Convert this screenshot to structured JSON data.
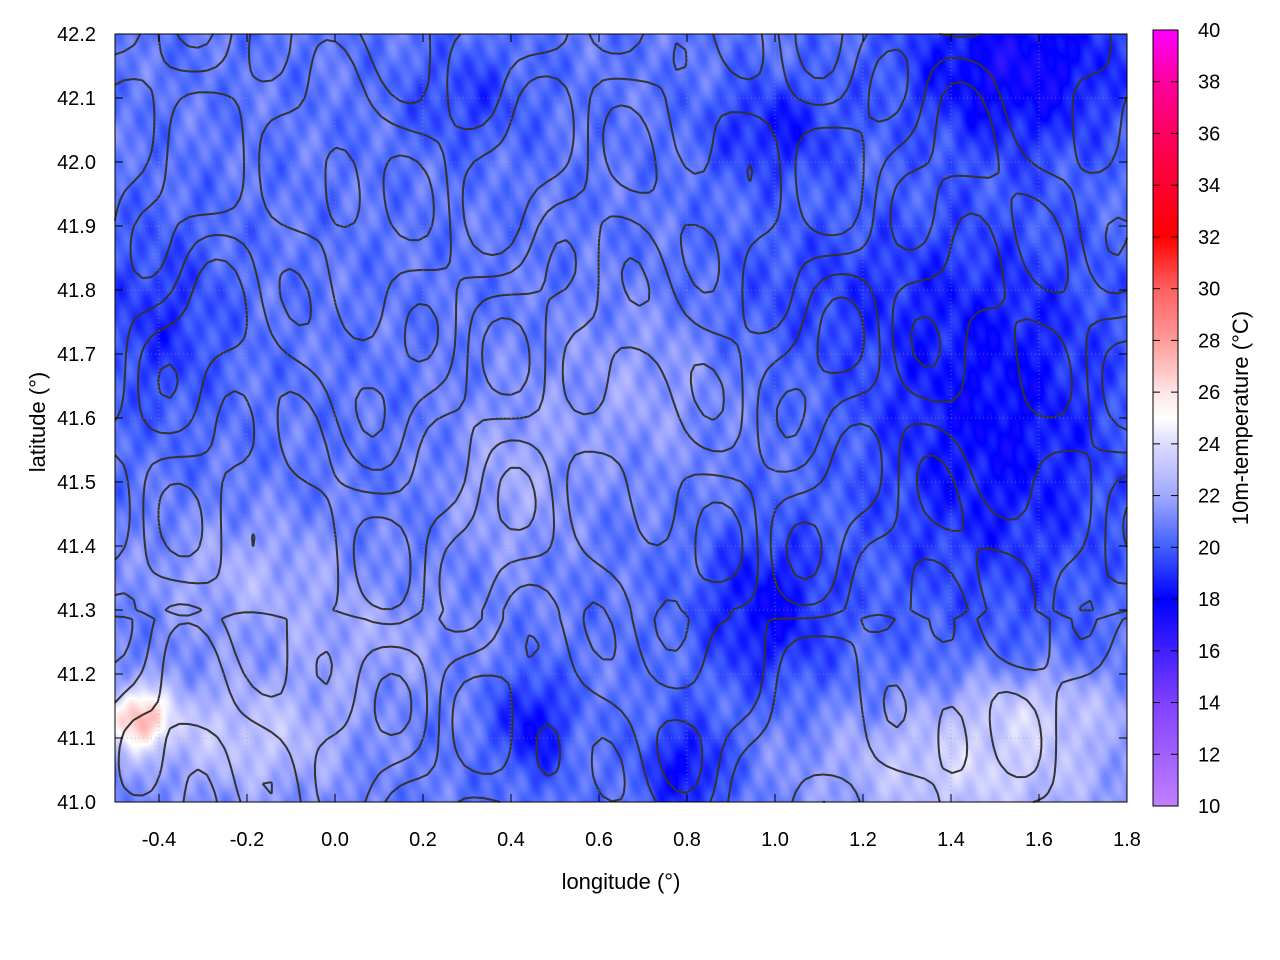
{
  "chart_data": {
    "type": "heatmap",
    "xlabel": "longitude (°)",
    "ylabel": "latitude (°)",
    "colorbar_label": "10m-temperature (°C)",
    "xlim": [
      -0.5,
      1.8
    ],
    "ylim": [
      41.0,
      42.2
    ],
    "cbrange": [
      10,
      40
    ],
    "xticks": [
      "-0.4",
      "-0.2",
      "0.0",
      "0.2",
      "0.4",
      "0.6",
      "0.8",
      "1.0",
      "1.2",
      "1.4",
      "1.6",
      "1.8"
    ],
    "yticks": [
      "41.0",
      "41.1",
      "41.2",
      "41.3",
      "41.4",
      "41.5",
      "41.6",
      "41.7",
      "41.8",
      "41.9",
      "42.0",
      "42.1",
      "42.2"
    ],
    "cbticks": [
      "10",
      "12",
      "14",
      "16",
      "18",
      "20",
      "22",
      "24",
      "26",
      "28",
      "30",
      "32",
      "34",
      "36",
      "38",
      "40"
    ],
    "grid": true,
    "contours": true,
    "colormap": [
      {
        "value": 10,
        "color": "#c080ff"
      },
      {
        "value": 14,
        "color": "#8040ff"
      },
      {
        "value": 18,
        "color": "#0000ff"
      },
      {
        "value": 20,
        "color": "#4060ff"
      },
      {
        "value": 22,
        "color": "#a0a8ff"
      },
      {
        "value": 24,
        "color": "#dcdcff"
      },
      {
        "value": 25,
        "color": "#ffffff"
      },
      {
        "value": 26,
        "color": "#ffe4e4"
      },
      {
        "value": 28,
        "color": "#ff9a9a"
      },
      {
        "value": 30,
        "color": "#ff6060"
      },
      {
        "value": 32,
        "color": "#ff0000"
      },
      {
        "value": 34,
        "color": "#ff0030"
      },
      {
        "value": 36,
        "color": "#ff0060"
      },
      {
        "value": 38,
        "color": "#ff00a0"
      },
      {
        "value": 40,
        "color": "#ff00ff"
      }
    ],
    "contour_color": "#333333"
  }
}
